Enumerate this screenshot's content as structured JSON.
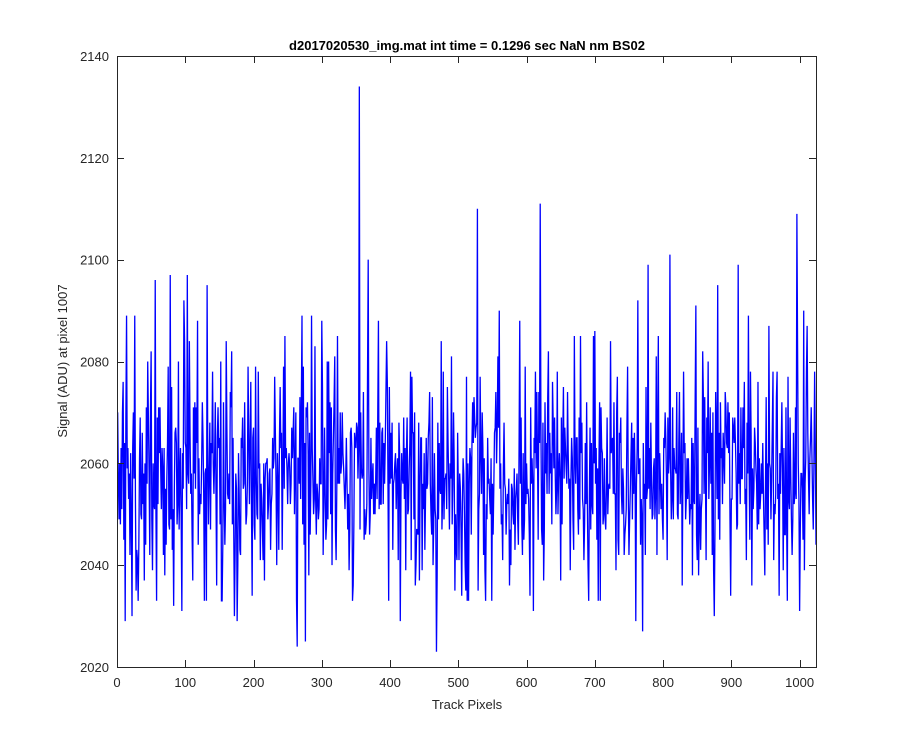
{
  "chart_data": {
    "type": "line",
    "title": "d2017020530_img.mat int time = 0.1296 sec  NaN nm BS02",
    "xlabel": "Track Pixels",
    "ylabel": "Signal (ADU) at pixel 1007",
    "xlim": [
      0,
      1024
    ],
    "ylim": [
      2020,
      2140
    ],
    "xticks": [
      0,
      100,
      200,
      300,
      400,
      500,
      600,
      700,
      800,
      900,
      1000
    ],
    "yticks": [
      2020,
      2040,
      2060,
      2080,
      2100,
      2120,
      2140
    ],
    "grid": false,
    "series": [
      {
        "color": "#0000ff",
        "noise": {
          "n": 1024,
          "mean": 2057,
          "sd": 10.5,
          "seed": 20170205
        },
        "peaks": [
          [
            1,
            2070
          ],
          [
            5,
            2048
          ],
          [
            9,
            2076
          ],
          [
            12,
            2029
          ],
          [
            14,
            2089
          ],
          [
            22,
            2030
          ],
          [
            26,
            2089
          ],
          [
            40,
            2037
          ],
          [
            45,
            2080
          ],
          [
            50,
            2082
          ],
          [
            52,
            2039
          ],
          [
            56,
            2096
          ],
          [
            70,
            2038
          ],
          [
            78,
            2097
          ],
          [
            83,
            2032
          ],
          [
            90,
            2080
          ],
          [
            95,
            2031
          ],
          [
            98,
            2092
          ],
          [
            103,
            2097
          ],
          [
            106,
            2084
          ],
          [
            118,
            2088
          ],
          [
            128,
            2033
          ],
          [
            132,
            2095
          ],
          [
            140,
            2078
          ],
          [
            172,
            2030
          ],
          [
            176,
            2029
          ],
          [
            192,
            2079
          ],
          [
            198,
            2034
          ],
          [
            264,
            2024
          ],
          [
            271,
            2089
          ],
          [
            276,
            2025
          ],
          [
            285,
            2089
          ],
          [
            290,
            2083
          ],
          [
            300,
            2088
          ],
          [
            345,
            2033
          ],
          [
            355,
            2134
          ],
          [
            368,
            2100
          ],
          [
            383,
            2088
          ],
          [
            395,
            2084
          ],
          [
            415,
            2029
          ],
          [
            430,
            2078
          ],
          [
            468,
            2023
          ],
          [
            475,
            2084
          ],
          [
            490,
            2081
          ],
          [
            505,
            2034
          ],
          [
            528,
            2110
          ],
          [
            540,
            2033
          ],
          [
            560,
            2090
          ],
          [
            575,
            2036
          ],
          [
            590,
            2088
          ],
          [
            605,
            2034
          ],
          [
            610,
            2031
          ],
          [
            620,
            2111
          ],
          [
            632,
            2082
          ],
          [
            650,
            2037
          ],
          [
            670,
            2085
          ],
          [
            690,
            2040
          ],
          [
            700,
            2086
          ],
          [
            760,
            2029
          ],
          [
            763,
            2092
          ],
          [
            770,
            2027
          ],
          [
            778,
            2099
          ],
          [
            790,
            2081
          ],
          [
            810,
            2101
          ],
          [
            828,
            2036
          ],
          [
            848,
            2091
          ],
          [
            875,
            2030
          ],
          [
            880,
            2095
          ],
          [
            899,
            2034
          ],
          [
            910,
            2099
          ],
          [
            925,
            2089
          ],
          [
            949,
            2038
          ],
          [
            955,
            2087
          ],
          [
            970,
            2034
          ],
          [
            996,
            2109
          ],
          [
            1000,
            2031
          ],
          [
            1006,
            2090
          ],
          [
            1011,
            2087
          ],
          [
            1015,
            2061
          ],
          [
            1022,
            2078
          ]
        ]
      }
    ]
  }
}
